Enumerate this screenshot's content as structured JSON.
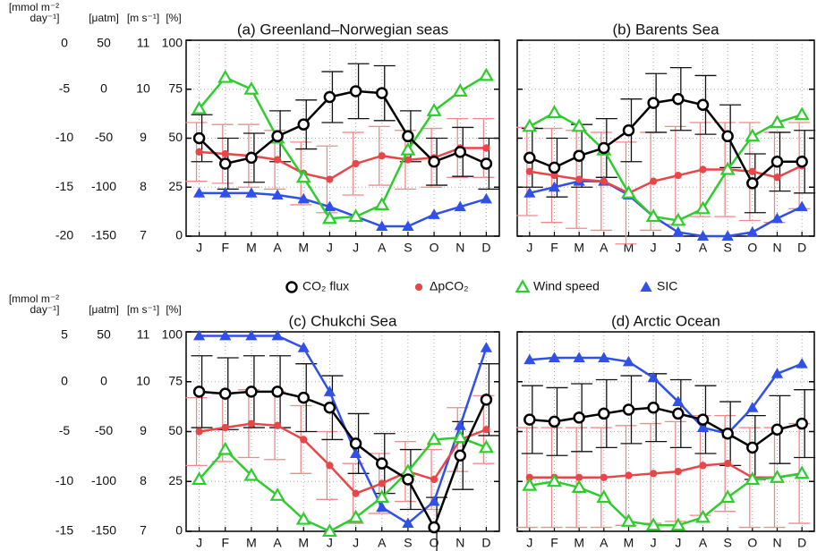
{
  "chart_data": {
    "grid": true,
    "categories": [
      "J",
      "F",
      "M",
      "A",
      "M",
      "J",
      "J",
      "A",
      "S",
      "O",
      "N",
      "D"
    ],
    "legend": [
      {
        "name": "CO₂ flux",
        "color": "#000000",
        "marker": "circle",
        "filled": false
      },
      {
        "name": "ΔpCO₂",
        "color": "#e8474a",
        "marker": "circle",
        "filled": true
      },
      {
        "name": "Wind speed",
        "color": "#2ecc2e",
        "marker": "triangle",
        "filled": false
      },
      {
        "name": "SIC",
        "color": "#3050e8",
        "marker": "triangle",
        "filled": true
      }
    ],
    "panels": [
      {
        "type": "line",
        "title": "(a) Greenland–Norwegian seas",
        "axes": [
          {
            "label": [
              "[mmol m⁻²",
              "day⁻¹]"
            ],
            "lim": [
              -20,
              0
            ],
            "ticks": [
              0,
              -5,
              -10,
              -15,
              -20
            ]
          },
          {
            "label": [
              "[μatm]"
            ],
            "lim": [
              -150,
              50
            ],
            "ticks": [
              50,
              0,
              -50,
              -100,
              -150
            ]
          },
          {
            "label": [
              "[m s⁻¹]"
            ],
            "lim": [
              7,
              11
            ],
            "ticks": [
              11,
              10,
              9,
              8,
              7
            ]
          },
          {
            "label": [
              "[%]"
            ],
            "lim": [
              0,
              100
            ],
            "ticks": [
              100,
              75,
              50,
              25,
              0
            ]
          }
        ],
        "series": [
          {
            "values": [
              -10,
              -12.6,
              -12,
              -9.8,
              -8.6,
              -5.8,
              -5.2,
              -5.4,
              -9.8,
              -12.4,
              -11.4,
              -12.6
            ],
            "errors": [
              2.4,
              2.6,
              2.5,
              2.6,
              2.5,
              2.6,
              2.8,
              2.8,
              2.6,
              2.4,
              2.5,
              2.6
            ]
          },
          {
            "values": [
              -64,
              -66,
              -68,
              -72,
              -86,
              -92,
              -76,
              -68,
              -72,
              -70,
              -60,
              -60
            ],
            "errors": [
              30,
              30,
              32,
              30,
              32,
              34,
              32,
              30,
              30,
              30,
              30,
              30
            ]
          },
          {
            "values": [
              9.6,
              10.24,
              10,
              9,
              8.2,
              7.36,
              7.4,
              7.64,
              8.76,
              9.56,
              9.96,
              10.28
            ]
          },
          {
            "values": [
              22,
              22,
              22,
              21,
              19,
              15,
              10,
              5,
              5,
              11,
              15,
              19
            ]
          }
        ]
      },
      {
        "type": "line",
        "title": "(b) Barents Sea",
        "axes": [
          {
            "lim": [
              -20,
              0
            ]
          },
          {
            "lim": [
              -150,
              50
            ]
          },
          {
            "lim": [
              7,
              11
            ]
          },
          {
            "lim": [
              0,
              100
            ],
            "ticks": [
              100,
              75,
              50,
              25,
              0
            ]
          }
        ],
        "series": [
          {
            "values": [
              -12,
              -13,
              -11.8,
              -11,
              -9.2,
              -6.4,
              -6,
              -6.6,
              -9.8,
              -14.6,
              -12.4,
              -12.4
            ],
            "errors": [
              3,
              3,
              3.2,
              3,
              3.2,
              3,
              3.2,
              3,
              3.2,
              3,
              3,
              3.2
            ]
          },
          {
            "values": [
              -84,
              -88,
              -92,
              -94,
              -106,
              -94,
              -88,
              -82,
              -82,
              -84,
              -90,
              -78
            ],
            "errors": [
              45,
              48,
              50,
              50,
              52,
              50,
              50,
              48,
              48,
              50,
              46,
              44
            ]
          },
          {
            "values": [
              9.24,
              9.52,
              9.24,
              8.76,
              7.88,
              7.4,
              7.32,
              7.56,
              8.36,
              9.04,
              9.32,
              9.48
            ]
          },
          {
            "values": [
              22,
              25,
              28,
              28,
              21,
              10,
              2,
              0,
              0,
              2,
              9,
              15
            ]
          }
        ]
      },
      {
        "type": "line",
        "title": "(c) Chukchi Sea",
        "axes": [
          {
            "label": [
              "[mmol m⁻²",
              "day⁻¹]"
            ],
            "lim": [
              -15,
              5
            ],
            "ticks": [
              5,
              0,
              -5,
              -10,
              -15
            ]
          },
          {
            "label": [
              "[μatm]"
            ],
            "lim": [
              -150,
              50
            ],
            "ticks": [
              50,
              0,
              -50,
              -100,
              -150
            ]
          },
          {
            "label": [
              "[m s⁻¹]"
            ],
            "lim": [
              7,
              11
            ],
            "ticks": [
              11,
              10,
              9,
              8,
              7
            ]
          },
          {
            "label": [
              "[%]"
            ],
            "lim": [
              0,
              100
            ],
            "ticks": [
              100,
              75,
              50,
              25,
              0
            ]
          }
        ],
        "series": [
          {
            "values": [
              -1,
              -1.2,
              -1,
              -1,
              -1.6,
              -2.6,
              -6.2,
              -8.2,
              -9.8,
              -14.6,
              -7.4,
              -1.8
            ],
            "errors": [
              3.6,
              3.6,
              3.6,
              3.6,
              3.4,
              3.2,
              3,
              3,
              3,
              3,
              3.4,
              3.6
            ]
          },
          {
            "values": [
              -50,
              -46,
              -42,
              -44,
              -58,
              -84,
              -112,
              -102,
              -90,
              -98,
              -58,
              -48
            ],
            "errors": [
              34,
              34,
              34,
              34,
              34,
              34,
              30,
              30,
              30,
              30,
              32,
              34
            ]
          },
          {
            "values": [
              8.04,
              8.64,
              8.12,
              7.72,
              7.24,
              7,
              7.28,
              7.68,
              8.2,
              8.84,
              8.88,
              8.68
            ]
          },
          {
            "values": [
              98,
              98,
              98,
              98,
              92,
              70,
              39,
              12,
              4,
              15,
              53,
              92
            ]
          }
        ]
      },
      {
        "type": "line",
        "title": "(d) Arctic Ocean",
        "axes": [
          {
            "lim": [
              -15,
              5
            ]
          },
          {
            "lim": [
              -150,
              50
            ]
          },
          {
            "lim": [
              7,
              11
            ]
          },
          {
            "lim": [
              0,
              100
            ],
            "ticks": [
              100,
              75,
              50,
              25,
              0
            ]
          }
        ],
        "series": [
          {
            "values": [
              -3.8,
              -4,
              -3.6,
              -3.2,
              -2.8,
              -2.6,
              -3.2,
              -3.8,
              -5.2,
              -6.6,
              -4.8,
              -4.2
            ],
            "errors": [
              3.4,
              3.4,
              3.4,
              3.4,
              3.4,
              3.4,
              3.4,
              3.4,
              3.2,
              3.2,
              3.4,
              3.4
            ]
          },
          {
            "values": [
              -96,
              -96,
              -96,
              -96,
              -94,
              -92,
              -90,
              -84,
              -82,
              -96,
              -96,
              -92
            ],
            "errors": [
              50,
              50,
              50,
              50,
              50,
              50,
              50,
              50,
              48,
              50,
              50,
              50
            ]
          },
          {
            "values": [
              7.92,
              8,
              7.88,
              7.68,
              7.2,
              7.12,
              7.12,
              7.28,
              7.68,
              8.04,
              8.08,
              8.16
            ]
          },
          {
            "values": [
              86,
              87,
              87,
              87,
              85,
              77,
              65,
              52,
              49,
              62,
              79,
              84
            ]
          }
        ]
      }
    ]
  }
}
